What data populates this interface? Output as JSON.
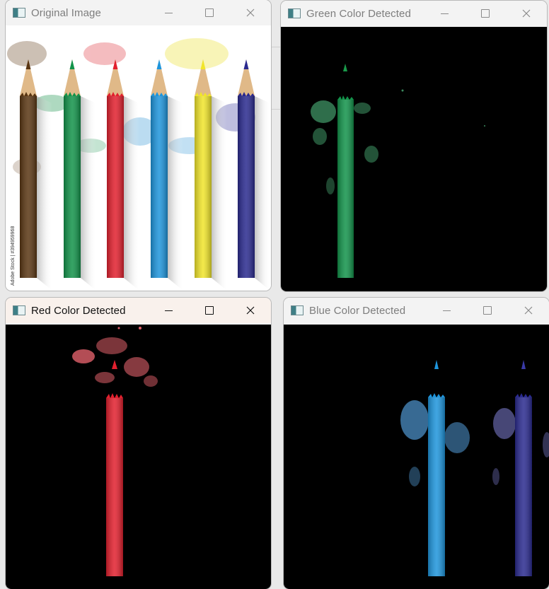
{
  "windows": [
    {
      "title": "Original Image"
    },
    {
      "title": "Green Color Detected"
    },
    {
      "title": "Red Color Detected"
    },
    {
      "title": "Blue Color Detected"
    }
  ],
  "watermark": "Adobe Stock | #394959968",
  "colors": {
    "brown": "#5a3613",
    "green": "#12934a",
    "red": "#e2202e",
    "blue": "#1e95dc",
    "yellow": "#f1e52a",
    "navy": "#2a2a8f",
    "wood": "#e0b988"
  }
}
